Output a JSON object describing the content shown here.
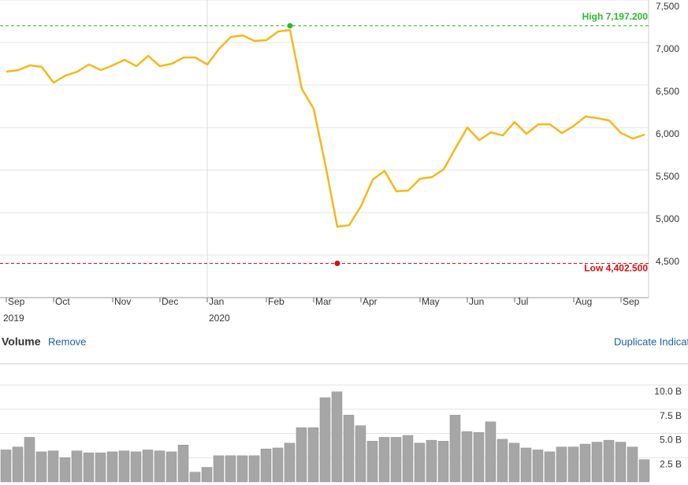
{
  "chart_data": [
    {
      "type": "line",
      "categories": [
        "Sep",
        null,
        null,
        null,
        "Oct",
        null,
        null,
        null,
        null,
        "Nov",
        null,
        null,
        null,
        "Dec",
        null,
        null,
        null,
        "Jan",
        null,
        null,
        null,
        null,
        "Feb",
        null,
        null,
        null,
        "Mar",
        null,
        null,
        null,
        "Apr",
        null,
        null,
        null,
        null,
        "May",
        null,
        null,
        null,
        "Jun",
        null,
        null,
        null,
        "Jul",
        null,
        null,
        null,
        null,
        "Aug",
        null,
        null,
        null,
        "Sep",
        null,
        null
      ],
      "year_labels": [
        "2019",
        null,
        null,
        null,
        null,
        null,
        null,
        null,
        null,
        null,
        null,
        null,
        null,
        null,
        null,
        null,
        null,
        "2020",
        null,
        null,
        null,
        null,
        null,
        null,
        null,
        null,
        null,
        null,
        null,
        null,
        null,
        null,
        null,
        null,
        null,
        null,
        null,
        null,
        null,
        null,
        null,
        null,
        null,
        null,
        null,
        null,
        null,
        null,
        null,
        null,
        null,
        null,
        null,
        null,
        null
      ],
      "series": [
        {
          "color": "#f5b818",
          "values": [
            6657,
            6676,
            6731,
            6713,
            6528,
            6611,
            6657,
            6741,
            6676,
            6731,
            6796,
            6722,
            6843,
            6722,
            6750,
            6824,
            6824,
            6741,
            6926,
            7065,
            7083,
            7019,
            7028,
            7130,
            7148,
            6454,
            6222,
            5556,
            4833,
            4852,
            5074,
            5389,
            5491,
            5250,
            5259,
            5398,
            5417,
            5509,
            5759,
            6000,
            5852,
            5944,
            5907,
            6065,
            5926,
            6037,
            6037,
            5935,
            6019,
            6130,
            6111,
            6083,
            5935,
            5870,
            5917
          ]
        }
      ],
      "ylim": [
        4000,
        7500
      ],
      "yticks": [
        {
          "value": 4500,
          "label": "4,500"
        },
        {
          "value": 5000,
          "label": "5,000"
        },
        {
          "value": 5500,
          "label": "5,500"
        },
        {
          "value": 6000,
          "label": "6,000"
        },
        {
          "value": 6500,
          "label": "6,500"
        },
        {
          "value": 7000,
          "label": "7,000"
        },
        {
          "value": 7500,
          "label": "7,500"
        }
      ],
      "grid": true,
      "high": {
        "value": 7197.2,
        "label": "High 7,197.200",
        "color": "#2db82d"
      },
      "low": {
        "value": 4402.5,
        "label": "Low 4,402.500",
        "color": "#d01010"
      }
    },
    {
      "type": "bar",
      "title": "Volume",
      "actions": [
        "Remove",
        "Duplicate Indicat"
      ],
      "color": "#a6a6a6",
      "values": [
        3.3,
        3.6,
        4.6,
        3.1,
        3.2,
        2.5,
        3.2,
        3.0,
        3.0,
        3.1,
        3.2,
        3.1,
        3.3,
        3.2,
        3.1,
        3.8,
        1.0,
        1.5,
        2.7,
        2.7,
        2.7,
        2.7,
        3.4,
        3.5,
        4.0,
        5.6,
        5.6,
        8.7,
        9.3,
        6.9,
        5.8,
        4.2,
        4.6,
        4.6,
        4.8,
        4.0,
        4.3,
        4.2,
        6.9,
        5.2,
        5.1,
        6.2,
        4.4,
        4.0,
        3.5,
        3.3,
        3.1,
        3.6,
        3.6,
        3.9,
        4.1,
        4.3,
        4.1,
        3.6,
        2.3
      ],
      "ylim": [
        0,
        12.2
      ],
      "yticks": [
        {
          "value": 2.5,
          "label": "2.5 B"
        },
        {
          "value": 5,
          "label": "5.0 B"
        },
        {
          "value": 7.5,
          "label": "7.5 B"
        },
        {
          "value": 10,
          "label": "10.0 B"
        }
      ],
      "grid": true
    }
  ]
}
